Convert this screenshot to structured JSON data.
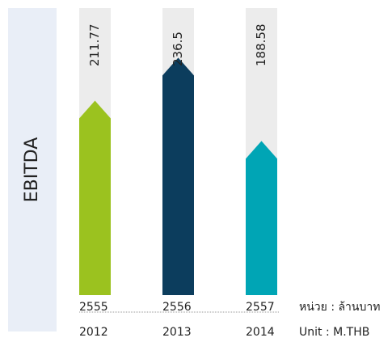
{
  "chart_data": {
    "type": "arrow-bar",
    "title": "EBITDA",
    "categories": [
      "2555",
      "2556",
      "2557"
    ],
    "categories_secondary": [
      "2012",
      "2013",
      "2014"
    ],
    "values": [
      211.77,
      236.5,
      188.58
    ],
    "colors": [
      "#9bc21f",
      "#0c3d5d",
      "#00a5b5"
    ],
    "ylim": [
      100,
      265
    ],
    "unit_label": "หน่วย : ล้านบาท",
    "unit_label_secondary": "Unit : M.THB"
  }
}
